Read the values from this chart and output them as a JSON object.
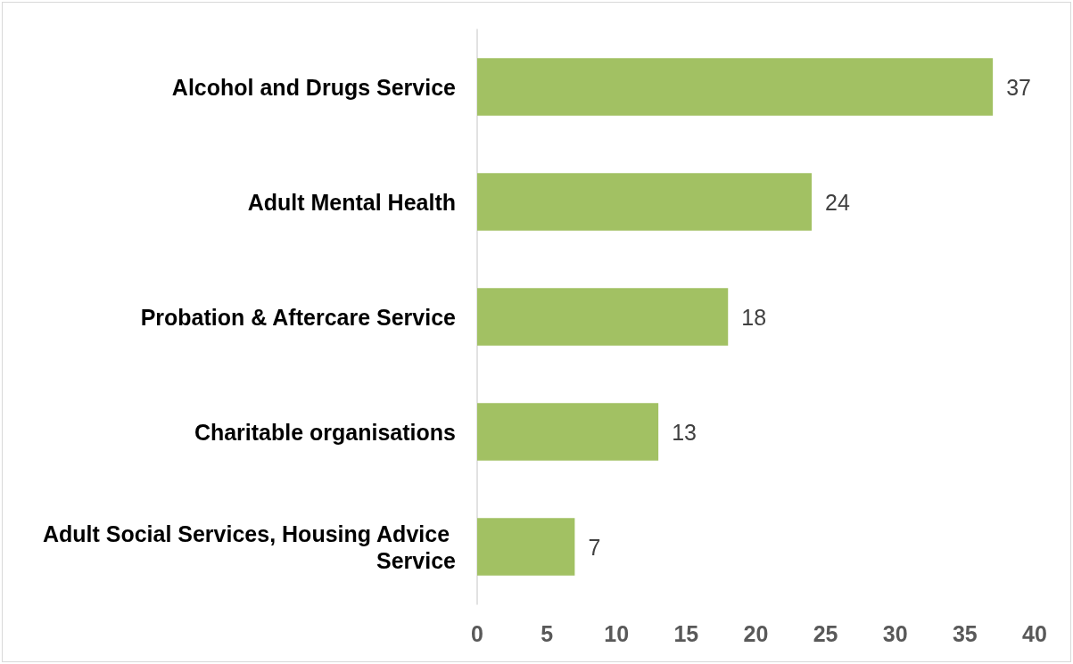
{
  "chart_data": {
    "type": "bar",
    "orientation": "horizontal",
    "categories": [
      "Alcohol and Drugs Service",
      "Adult Mental Health",
      "Probation & Aftercare Service",
      "Charitable organisations",
      "Adult Social Services, Housing Advice Service"
    ],
    "values": [
      37,
      24,
      18,
      13,
      7
    ],
    "color": "#a2c163",
    "xlim": [
      0,
      40
    ],
    "xticks": [
      0,
      5,
      10,
      15,
      20,
      25,
      30,
      35,
      40
    ],
    "data_labels": true
  }
}
